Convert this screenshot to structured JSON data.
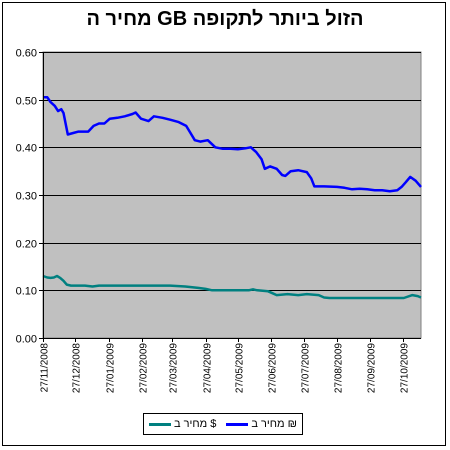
{
  "chart_data": {
    "type": "line",
    "title": "מחיר ה GB הזול ביותר לתקופה",
    "ylim": [
      0,
      0.6
    ],
    "y_ticks": [
      "0.00",
      "0.10",
      "0.20",
      "0.30",
      "0.40",
      "0.50",
      "0.60"
    ],
    "y_tick_values": [
      0,
      0.1,
      0.2,
      0.3,
      0.4,
      0.5,
      0.6
    ],
    "x_range": [
      "2008-11-27",
      "2009-11-13"
    ],
    "x_ticks": [
      "27/11/2008",
      "27/12/2008",
      "27/01/2009",
      "27/02/2009",
      "27/03/2009",
      "27/04/2009",
      "27/05/2009",
      "27/06/2009",
      "27/07/2009",
      "27/08/2009",
      "27/09/2009",
      "27/10/2009"
    ],
    "x_tick_dates": [
      "2008-11-27",
      "2008-12-27",
      "2009-01-27",
      "2009-02-27",
      "2009-03-27",
      "2009-04-27",
      "2009-05-27",
      "2009-06-27",
      "2009-07-27",
      "2009-08-27",
      "2009-09-27",
      "2009-10-27"
    ],
    "grid": "horizontal",
    "legend_position": "bottom",
    "plot_background": "#c0c0c0",
    "series": [
      {
        "name": "מחיר ב ₪",
        "color": "#0000ff",
        "points": [
          [
            "2008-11-27",
            0.505
          ],
          [
            "2008-12-01",
            0.505
          ],
          [
            "2008-12-04",
            0.495
          ],
          [
            "2008-12-08",
            0.487
          ],
          [
            "2008-12-11",
            0.476
          ],
          [
            "2008-12-14",
            0.48
          ],
          [
            "2008-12-16",
            0.472
          ],
          [
            "2008-12-20",
            0.427
          ],
          [
            "2008-12-25",
            0.43
          ],
          [
            "2008-12-30",
            0.433
          ],
          [
            "2009-01-08",
            0.433
          ],
          [
            "2009-01-13",
            0.445
          ],
          [
            "2009-01-18",
            0.45
          ],
          [
            "2009-01-23",
            0.45
          ],
          [
            "2009-01-28",
            0.46
          ],
          [
            "2009-02-04",
            0.462
          ],
          [
            "2009-02-11",
            0.465
          ],
          [
            "2009-02-18",
            0.47
          ],
          [
            "2009-02-21",
            0.473
          ],
          [
            "2009-02-26",
            0.46
          ],
          [
            "2009-03-01",
            0.458
          ],
          [
            "2009-03-05",
            0.455
          ],
          [
            "2009-03-10",
            0.465
          ],
          [
            "2009-03-18",
            0.462
          ],
          [
            "2009-03-25",
            0.458
          ],
          [
            "2009-04-02",
            0.453
          ],
          [
            "2009-04-09",
            0.445
          ],
          [
            "2009-04-13",
            0.43
          ],
          [
            "2009-04-17",
            0.415
          ],
          [
            "2009-04-22",
            0.412
          ],
          [
            "2009-04-29",
            0.415
          ],
          [
            "2009-05-06",
            0.4
          ],
          [
            "2009-05-13",
            0.397
          ],
          [
            "2009-05-20",
            0.397
          ],
          [
            "2009-05-27",
            0.396
          ],
          [
            "2009-06-03",
            0.398
          ],
          [
            "2009-06-08",
            0.4
          ],
          [
            "2009-06-13",
            0.39
          ],
          [
            "2009-06-18",
            0.375
          ],
          [
            "2009-06-21",
            0.355
          ],
          [
            "2009-06-26",
            0.36
          ],
          [
            "2009-07-02",
            0.355
          ],
          [
            "2009-07-07",
            0.342
          ],
          [
            "2009-07-10",
            0.34
          ],
          [
            "2009-07-15",
            0.35
          ],
          [
            "2009-07-22",
            0.352
          ],
          [
            "2009-07-30",
            0.348
          ],
          [
            "2009-08-03",
            0.335
          ],
          [
            "2009-08-06",
            0.318
          ],
          [
            "2009-08-15",
            0.318
          ],
          [
            "2009-08-27",
            0.317
          ],
          [
            "2009-09-03",
            0.315
          ],
          [
            "2009-09-10",
            0.312
          ],
          [
            "2009-09-17",
            0.313
          ],
          [
            "2009-09-24",
            0.312
          ],
          [
            "2009-10-01",
            0.31
          ],
          [
            "2009-10-08",
            0.31
          ],
          [
            "2009-10-15",
            0.308
          ],
          [
            "2009-10-22",
            0.31
          ],
          [
            "2009-10-26",
            0.317
          ],
          [
            "2009-10-30",
            0.327
          ],
          [
            "2009-11-03",
            0.338
          ],
          [
            "2009-11-08",
            0.33
          ],
          [
            "2009-11-13",
            0.317
          ]
        ]
      },
      {
        "name": "מחיר ב $",
        "color": "#008080",
        "points": [
          [
            "2008-11-27",
            0.13
          ],
          [
            "2008-12-01",
            0.127
          ],
          [
            "2008-12-04",
            0.126
          ],
          [
            "2008-12-07",
            0.127
          ],
          [
            "2008-12-10",
            0.13
          ],
          [
            "2008-12-13",
            0.126
          ],
          [
            "2008-12-16",
            0.12
          ],
          [
            "2008-12-19",
            0.112
          ],
          [
            "2008-12-23",
            0.11
          ],
          [
            "2009-01-05",
            0.11
          ],
          [
            "2009-01-12",
            0.108
          ],
          [
            "2009-01-18",
            0.11
          ],
          [
            "2009-02-20",
            0.11
          ],
          [
            "2009-03-25",
            0.11
          ],
          [
            "2009-04-08",
            0.108
          ],
          [
            "2009-04-20",
            0.105
          ],
          [
            "2009-04-27",
            0.103
          ],
          [
            "2009-05-03",
            0.1
          ],
          [
            "2009-05-20",
            0.1
          ],
          [
            "2009-06-06",
            0.1
          ],
          [
            "2009-06-10",
            0.102
          ],
          [
            "2009-06-14",
            0.1
          ],
          [
            "2009-06-24",
            0.098
          ],
          [
            "2009-06-28",
            0.094
          ],
          [
            "2009-07-02",
            0.09
          ],
          [
            "2009-07-12",
            0.092
          ],
          [
            "2009-07-22",
            0.09
          ],
          [
            "2009-07-30",
            0.092
          ],
          [
            "2009-08-10",
            0.09
          ],
          [
            "2009-08-15",
            0.085
          ],
          [
            "2009-08-20",
            0.084
          ],
          [
            "2009-09-15",
            0.084
          ],
          [
            "2009-10-10",
            0.084
          ],
          [
            "2009-10-28",
            0.084
          ],
          [
            "2009-11-05",
            0.09
          ],
          [
            "2009-11-10",
            0.088
          ],
          [
            "2009-11-13",
            0.085
          ]
        ]
      }
    ]
  }
}
